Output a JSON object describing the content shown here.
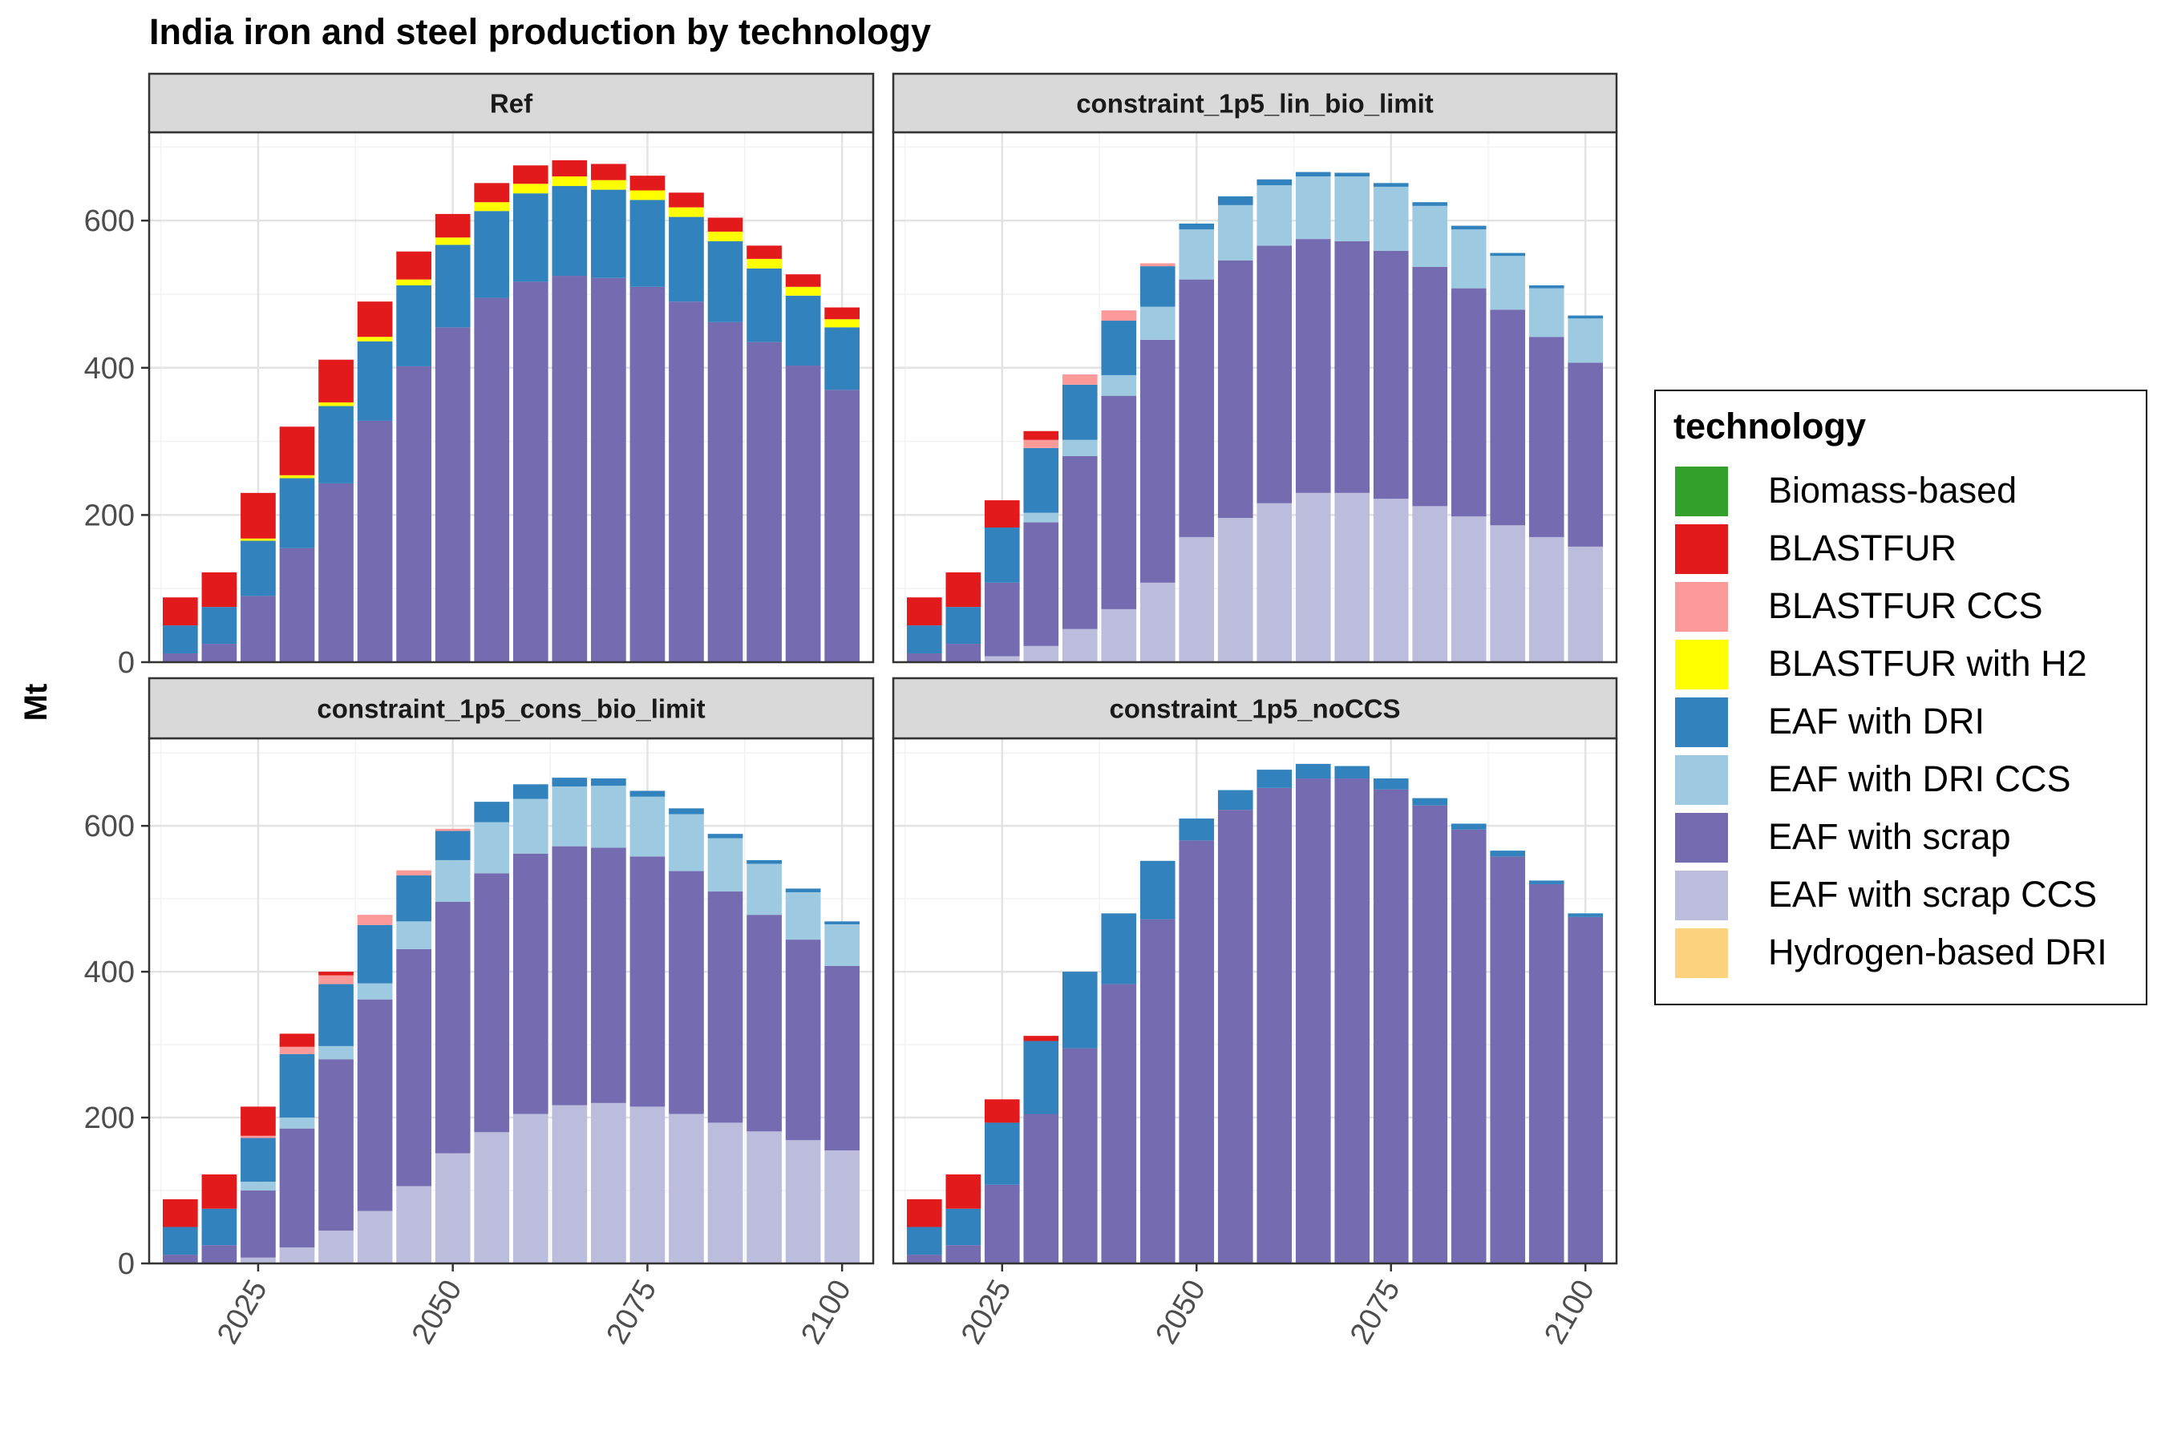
{
  "chart_data": {
    "type": "bar",
    "stacked": true,
    "title": "India iron and steel production by technology",
    "ylabel": "Mt",
    "xlabel": "",
    "ylim": [
      0,
      720
    ],
    "xlim": [
      2011,
      2104
    ],
    "yticks": [
      0,
      200,
      400,
      600
    ],
    "xticks": [
      2025,
      2050,
      2075,
      2100
    ],
    "grid": true,
    "legend_position": "right",
    "legend_title": "technology",
    "technologies": [
      {
        "name": "Biomass-based",
        "color": "#33a02c"
      },
      {
        "name": "BLASTFUR",
        "color": "#e31a1c"
      },
      {
        "name": "BLASTFUR CCS",
        "color": "#fb9a99"
      },
      {
        "name": "BLASTFUR with H2",
        "color": "#ffff00"
      },
      {
        "name": "EAF with DRI",
        "color": "#3182bd"
      },
      {
        "name": "EAF with DRI CCS",
        "color": "#9ecae1"
      },
      {
        "name": "EAF with scrap",
        "color": "#756bb1"
      },
      {
        "name": "EAF with scrap CCS",
        "color": "#bcbddc"
      },
      {
        "name": "Hydrogen-based DRI",
        "color": "#fdd380"
      }
    ],
    "years": [
      2015,
      2020,
      2025,
      2030,
      2035,
      2040,
      2045,
      2050,
      2055,
      2060,
      2065,
      2070,
      2075,
      2080,
      2085,
      2090,
      2095,
      2100
    ],
    "panels": [
      {
        "name": "Ref",
        "series": [
          {
            "name": "BLASTFUR",
            "values": [
              38,
              47,
              62,
              66,
              58,
              48,
              38,
              32,
              26,
              25,
              22,
              22,
              20,
              20,
              19,
              18,
              17,
              16
            ]
          },
          {
            "name": "BLASTFUR with H2",
            "values": [
              0,
              0,
              3,
              4,
              5,
              6,
              8,
              10,
              12,
              13,
              13,
              13,
              13,
              13,
              13,
              13,
              12,
              11
            ]
          },
          {
            "name": "EAF with DRI",
            "values": [
              38,
              50,
              75,
              95,
              105,
              108,
              110,
              112,
              118,
              120,
              122,
              120,
              118,
              115,
              110,
              100,
              95,
              85
            ]
          },
          {
            "name": "EAF with scrap",
            "values": [
              12,
              25,
              90,
              155,
              243,
              328,
              402,
              455,
              495,
              517,
              525,
              522,
              510,
              490,
              462,
              435,
              403,
              370
            ]
          }
        ]
      },
      {
        "name": "constraint_1p5_lin_bio_limit",
        "series": [
          {
            "name": "BLASTFUR",
            "values": [
              38,
              47,
              37,
              12,
              0,
              0,
              0,
              0,
              0,
              0,
              0,
              0,
              0,
              0,
              0,
              0,
              0,
              0
            ]
          },
          {
            "name": "BLASTFUR CCS",
            "values": [
              0,
              0,
              0,
              11,
              14,
              14,
              4,
              0,
              0,
              0,
              0,
              0,
              0,
              0,
              0,
              0,
              0,
              0
            ]
          },
          {
            "name": "EAF with DRI",
            "values": [
              38,
              50,
              75,
              88,
              75,
              74,
              55,
              8,
              12,
              8,
              6,
              5,
              5,
              5,
              5,
              4,
              4,
              4
            ]
          },
          {
            "name": "EAF with DRI CCS",
            "values": [
              0,
              0,
              0,
              13,
              22,
              28,
              45,
              68,
              75,
              82,
              85,
              88,
              87,
              83,
              80,
              73,
              66,
              60
            ]
          },
          {
            "name": "EAF with scrap",
            "values": [
              12,
              25,
              100,
              168,
              235,
              290,
              330,
              350,
              350,
              350,
              345,
              342,
              337,
              325,
              310,
              293,
              272,
              250
            ]
          },
          {
            "name": "EAF with scrap CCS",
            "values": [
              0,
              0,
              8,
              22,
              45,
              72,
              108,
              170,
              196,
              216,
              230,
              230,
              222,
              212,
              198,
              186,
              170,
              157
            ]
          }
        ]
      },
      {
        "name": "constraint_1p5_cons_bio_limit",
        "series": [
          {
            "name": "BLASTFUR",
            "values": [
              38,
              47,
              40,
              18,
              5,
              0,
              0,
              0,
              0,
              0,
              0,
              0,
              0,
              0,
              0,
              0,
              0,
              0
            ]
          },
          {
            "name": "BLASTFUR CCS",
            "values": [
              0,
              0,
              3,
              10,
              12,
              14,
              7,
              3,
              0,
              0,
              0,
              0,
              0,
              0,
              0,
              0,
              0,
              0
            ]
          },
          {
            "name": "EAF with DRI",
            "values": [
              38,
              50,
              60,
              87,
              85,
              80,
              63,
              40,
              28,
              20,
              12,
              10,
              8,
              8,
              6,
              5,
              5,
              4
            ]
          },
          {
            "name": "EAF with DRI CCS",
            "values": [
              0,
              0,
              12,
              15,
              18,
              22,
              38,
              57,
              70,
              75,
              82,
              85,
              82,
              78,
              73,
              70,
              65,
              57
            ]
          },
          {
            "name": "EAF with scrap",
            "values": [
              12,
              25,
              92,
              163,
              235,
              290,
              325,
              345,
              355,
              357,
              355,
              350,
              343,
              333,
              317,
              297,
              275,
              253
            ]
          },
          {
            "name": "EAF with scrap CCS",
            "values": [
              0,
              0,
              8,
              22,
              45,
              72,
              106,
              151,
              180,
              205,
              217,
              220,
              215,
              205,
              193,
              181,
              169,
              155
            ]
          }
        ]
      },
      {
        "name": "constraint_1p5_noCCS",
        "series": [
          {
            "name": "BLASTFUR",
            "values": [
              38,
              47,
              32,
              7,
              0,
              0,
              0,
              0,
              0,
              0,
              0,
              0,
              0,
              0,
              0,
              0,
              0,
              0
            ]
          },
          {
            "name": "EAF with DRI",
            "values": [
              38,
              50,
              85,
              100,
              105,
              97,
              80,
              30,
              27,
              25,
              20,
              17,
              15,
              10,
              8,
              8,
              5,
              5
            ]
          },
          {
            "name": "EAF with scrap",
            "values": [
              12,
              25,
              108,
              205,
              295,
              383,
              472,
              580,
              622,
              652,
              665,
              665,
              650,
              628,
              595,
              558,
              520,
              475
            ]
          }
        ]
      }
    ]
  }
}
